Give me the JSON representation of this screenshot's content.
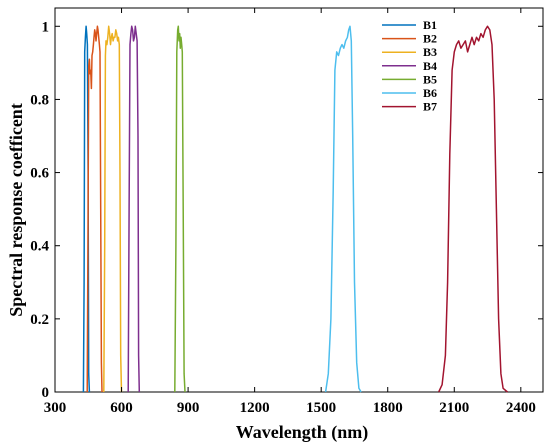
{
  "chart_data": {
    "type": "line",
    "xlabel": "Wavelength (nm)",
    "ylabel": "Spectral response coefficent",
    "xlim": [
      300,
      2500
    ],
    "ylim": [
      0,
      1.05
    ],
    "xticks": [
      300,
      600,
      900,
      1200,
      1500,
      1800,
      2100,
      2400
    ],
    "yticks": [
      0,
      0.2,
      0.4,
      0.6,
      0.8,
      1
    ],
    "ytick_labels": [
      "0",
      "0.2",
      "0.4",
      "0.6",
      "0.8",
      "1"
    ],
    "grid": false,
    "legend_position": "top-right",
    "series": [
      {
        "name": "B1",
        "color": "#0072BD",
        "x": [
          428,
          431,
          434,
          437,
          440,
          443,
          446,
          449,
          452,
          455
        ],
        "y": [
          0,
          0.3,
          0.93,
          0.97,
          1.0,
          0.98,
          0.95,
          0.6,
          0.05,
          0
        ]
      },
      {
        "name": "B2",
        "color": "#D95319",
        "x": [
          445,
          449,
          452,
          455,
          458,
          461,
          464,
          467,
          470,
          473,
          476,
          479,
          482,
          485,
          488,
          491,
          494,
          497,
          500,
          503,
          506,
          509,
          512
        ],
        "y": [
          0,
          0.5,
          0.89,
          0.91,
          0.87,
          0.88,
          0.83,
          0.92,
          0.93,
          0.95,
          0.97,
          0.99,
          0.98,
          0.96,
          0.98,
          1.0,
          0.99,
          0.97,
          0.95,
          0.93,
          0.5,
          0.08,
          0
        ]
      },
      {
        "name": "B3",
        "color": "#EDB120",
        "x": [
          520,
          524,
          527,
          530,
          534,
          538,
          542,
          546,
          550,
          554,
          558,
          562,
          566,
          570,
          574,
          578,
          582,
          586,
          590,
          593,
          596,
          600
        ],
        "y": [
          0,
          0.4,
          0.92,
          0.96,
          0.95,
          0.97,
          1.0,
          0.98,
          0.95,
          0.97,
          0.98,
          0.96,
          0.97,
          0.97,
          0.99,
          0.98,
          0.96,
          0.97,
          0.95,
          0.6,
          0.1,
          0
        ]
      },
      {
        "name": "B4",
        "color": "#7E2F8E",
        "x": [
          630,
          634,
          638,
          642,
          646,
          650,
          654,
          658,
          662,
          666,
          670,
          674,
          677,
          680
        ],
        "y": [
          0,
          0.5,
          0.95,
          0.98,
          1.0,
          0.99,
          0.96,
          0.97,
          1.0,
          0.98,
          0.96,
          0.7,
          0.1,
          0
        ]
      },
      {
        "name": "B5",
        "color": "#77AC30",
        "x": [
          840,
          845,
          849,
          853,
          856,
          859,
          862,
          865,
          868,
          871,
          874,
          878,
          882,
          886
        ],
        "y": [
          0,
          0.4,
          0.93,
          0.99,
          1.0,
          0.96,
          0.98,
          0.94,
          0.97,
          0.95,
          0.93,
          0.5,
          0.05,
          0
        ]
      },
      {
        "name": "B6",
        "color": "#4DBEEE",
        "x": [
          1520,
          1532,
          1544,
          1554,
          1562,
          1570,
          1578,
          1586,
          1594,
          1602,
          1610,
          1618,
          1624,
          1630,
          1636,
          1642,
          1650,
          1660,
          1670,
          1680
        ],
        "y": [
          0,
          0.05,
          0.2,
          0.55,
          0.88,
          0.93,
          0.92,
          0.94,
          0.95,
          0.94,
          0.96,
          0.97,
          0.99,
          1.0,
          0.96,
          0.7,
          0.3,
          0.08,
          0.01,
          0
        ]
      },
      {
        "name": "B7",
        "color": "#A2142F",
        "x": [
          2030,
          2045,
          2060,
          2070,
          2080,
          2090,
          2100,
          2110,
          2120,
          2130,
          2140,
          2150,
          2160,
          2170,
          2180,
          2190,
          2200,
          2210,
          2220,
          2230,
          2240,
          2250,
          2260,
          2270,
          2280,
          2290,
          2300,
          2310,
          2320,
          2340
        ],
        "y": [
          0,
          0.02,
          0.1,
          0.3,
          0.65,
          0.88,
          0.93,
          0.95,
          0.96,
          0.94,
          0.95,
          0.96,
          0.93,
          0.95,
          0.97,
          0.95,
          0.97,
          0.96,
          0.98,
          0.97,
          0.99,
          1.0,
          0.99,
          0.95,
          0.8,
          0.5,
          0.2,
          0.05,
          0.01,
          0
        ]
      }
    ]
  }
}
